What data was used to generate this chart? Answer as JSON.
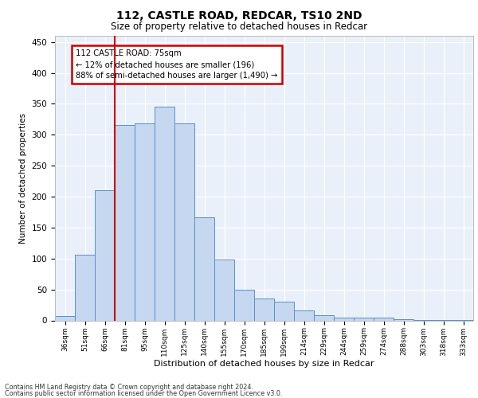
{
  "title1": "112, CASTLE ROAD, REDCAR, TS10 2ND",
  "title2": "Size of property relative to detached houses in Redcar",
  "xlabel": "Distribution of detached houses by size in Redcar",
  "ylabel": "Number of detached properties",
  "bar_labels": [
    "36sqm",
    "51sqm",
    "66sqm",
    "81sqm",
    "95sqm",
    "110sqm",
    "125sqm",
    "140sqm",
    "155sqm",
    "170sqm",
    "185sqm",
    "199sqm",
    "214sqm",
    "229sqm",
    "244sqm",
    "259sqm",
    "274sqm",
    "288sqm",
    "303sqm",
    "318sqm",
    "333sqm"
  ],
  "bar_values": [
    7,
    106,
    210,
    316,
    318,
    345,
    319,
    167,
    98,
    50,
    36,
    30,
    16,
    9,
    4,
    5,
    4,
    2,
    1,
    1,
    1
  ],
  "bar_color": "#c5d8f0",
  "bar_edge_color": "#5b8fc9",
  "vline_color": "#cc0000",
  "annotation_text": "112 CASTLE ROAD: 75sqm\n← 12% of detached houses are smaller (196)\n88% of semi-detached houses are larger (1,490) →",
  "annotation_box_color": "#ffffff",
  "annotation_box_edge": "#cc0000",
  "ylim": [
    0,
    460
  ],
  "yticks": [
    0,
    50,
    100,
    150,
    200,
    250,
    300,
    350,
    400,
    450
  ],
  "bg_color": "#eaf0f9",
  "grid_color": "#ffffff",
  "footer1": "Contains HM Land Registry data © Crown copyright and database right 2024.",
  "footer2": "Contains public sector information licensed under the Open Government Licence v3.0."
}
